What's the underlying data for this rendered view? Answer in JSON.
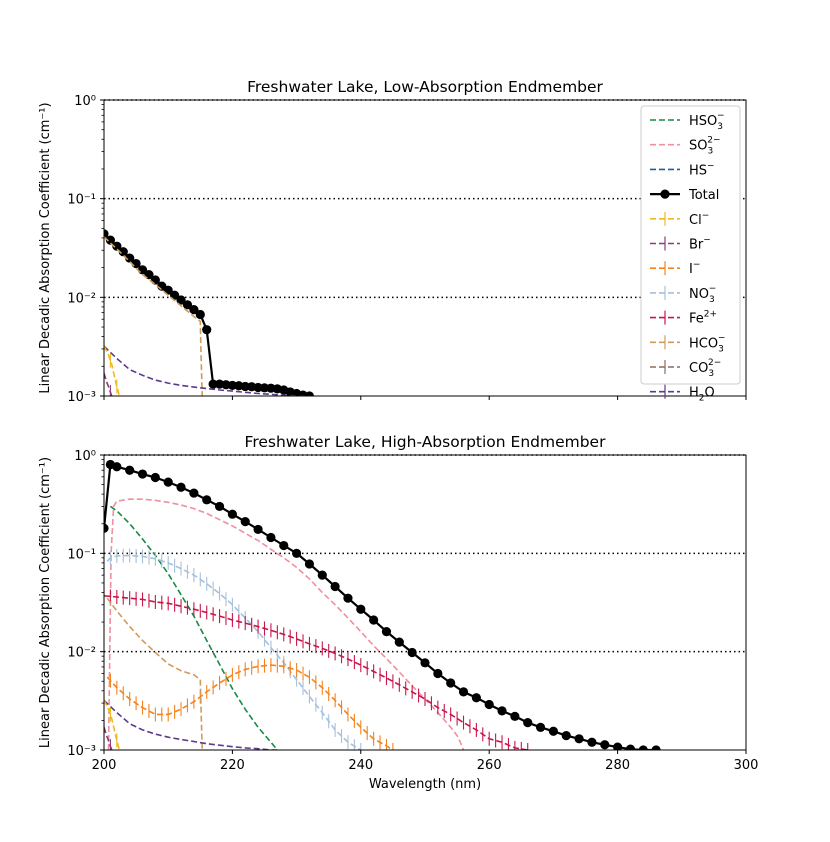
{
  "chart_data": [
    {
      "type": "line",
      "title": "Freshwater Lake, Low-Absorption Endmember",
      "xlabel": "",
      "ylabel": "Linear Decadic Absorption Coefficient (cm⁻¹)",
      "xlim": [
        200,
        300
      ],
      "ylim": [
        0.001,
        1
      ],
      "yscale": "log",
      "yticks": [
        "10⁻³",
        "10⁻²",
        "10⁻¹",
        "10⁰"
      ],
      "grid": "dotted horizontal at 10^-2 and 10^-1",
      "legend_position": "top-right",
      "series": [
        {
          "name": "Total",
          "color": "#000000",
          "style": "solid-markers",
          "x": [
            200,
            201,
            202,
            203,
            204,
            205,
            206,
            207,
            208,
            209,
            210,
            211,
            212,
            213,
            214,
            215,
            216,
            217,
            218,
            219,
            220,
            221,
            222,
            223,
            224,
            225,
            226,
            227,
            228,
            229,
            230,
            231,
            232
          ],
          "y": [
            0.044,
            0.038,
            0.033,
            0.029,
            0.025,
            0.022,
            0.019,
            0.017,
            0.015,
            0.013,
            0.0118,
            0.0105,
            0.0094,
            0.0084,
            0.0075,
            0.0067,
            0.0047,
            0.00132,
            0.00132,
            0.0013,
            0.00128,
            0.00127,
            0.00125,
            0.00124,
            0.00122,
            0.00121,
            0.0012,
            0.00118,
            0.00115,
            0.0011,
            0.00106,
            0.00102,
            0.001
          ]
        },
        {
          "name": "HCO₃⁻",
          "color": "#d09c5c",
          "style": "dashed",
          "x": [
            200,
            202,
            204,
            206,
            208,
            210,
            212,
            214,
            215,
            215.1,
            215.3
          ],
          "y": [
            0.041,
            0.031,
            0.023,
            0.017,
            0.0135,
            0.0105,
            0.0082,
            0.0064,
            0.0057,
            0.003,
            0.001
          ]
        },
        {
          "name": "H₂O",
          "color": "#5b3b8c",
          "style": "dashed",
          "x": [
            200,
            202,
            204,
            206,
            208,
            210,
            212,
            214,
            216,
            218,
            220,
            222,
            224,
            226,
            228,
            230,
            232
          ],
          "y": [
            0.0032,
            0.0024,
            0.00185,
            0.00162,
            0.00145,
            0.00135,
            0.00128,
            0.00123,
            0.00119,
            0.00115,
            0.00112,
            0.00109,
            0.00106,
            0.00104,
            0.00102,
            0.001,
            0.001
          ]
        },
        {
          "name": "Cl⁻",
          "color": "#f0b820",
          "style": "dashed-cross",
          "x": [
            200,
            200.6,
            201.2,
            201.8,
            202.4
          ],
          "y": [
            0.0032,
            0.0027,
            0.0021,
            0.0014,
            0.001
          ]
        },
        {
          "name": "Br⁻",
          "color": "#8b3a7c",
          "style": "dashed-cross",
          "x": [
            200,
            200.4,
            200.8,
            201.2
          ],
          "y": [
            0.0017,
            0.0014,
            0.0012,
            0.001
          ]
        }
      ],
      "legend": [
        "HSO₃⁻",
        "SO₃²⁻",
        "HS⁻",
        "Total",
        "Cl⁻",
        "Br⁻",
        "I⁻",
        "NO₃⁻",
        "Fe²⁺",
        "HCO₃⁻",
        "CO₃²⁻",
        "H₂O"
      ]
    },
    {
      "type": "line",
      "title": "Freshwater Lake, High-Absorption Endmember",
      "xlabel": "Wavelength (nm)",
      "ylabel": "Linear Decadic Absorption Coefficient (cm⁻¹)",
      "xlim": [
        200,
        300
      ],
      "ylim": [
        0.001,
        1
      ],
      "yscale": "log",
      "xticks": [
        "200",
        "220",
        "240",
        "260",
        "280",
        "300"
      ],
      "yticks": [
        "10⁻³",
        "10⁻²",
        "10⁻¹",
        "10⁰"
      ],
      "grid": "dotted horizontal at 10^-2 and 10^-1",
      "series": [
        {
          "name": "Total",
          "color": "#000000",
          "style": "solid-markers",
          "x": [
            200,
            201,
            202,
            204,
            206,
            208,
            210,
            212,
            214,
            216,
            218,
            220,
            222,
            224,
            226,
            228,
            230,
            232,
            234,
            236,
            238,
            240,
            242,
            244,
            246,
            248,
            250,
            252,
            254,
            256,
            258,
            260,
            262,
            264,
            266,
            268,
            270,
            272,
            274,
            276,
            278,
            280,
            282,
            284,
            286
          ],
          "y": [
            0.18,
            0.8,
            0.76,
            0.7,
            0.64,
            0.59,
            0.53,
            0.47,
            0.41,
            0.35,
            0.3,
            0.25,
            0.21,
            0.175,
            0.145,
            0.12,
            0.1,
            0.078,
            0.06,
            0.046,
            0.035,
            0.027,
            0.021,
            0.016,
            0.0125,
            0.0098,
            0.0077,
            0.006,
            0.0048,
            0.0039,
            0.0034,
            0.0029,
            0.0025,
            0.0022,
            0.0019,
            0.0017,
            0.00155,
            0.0014,
            0.0013,
            0.0012,
            0.00113,
            0.00107,
            0.00102,
            0.001,
            0.001
          ]
        },
        {
          "name": "SO₃²⁻",
          "color": "#ef8fa0",
          "style": "dashed",
          "x": [
            200.7,
            200.9,
            201.1,
            201.5,
            202,
            204,
            206,
            208,
            210,
            212,
            214,
            216,
            218,
            220,
            222,
            224,
            226,
            228,
            230,
            232,
            234,
            236,
            238,
            240,
            242,
            244,
            246,
            248,
            250,
            252,
            254,
            255,
            255.5,
            256
          ],
          "y": [
            0.001,
            0.01,
            0.1,
            0.3,
            0.34,
            0.355,
            0.355,
            0.345,
            0.33,
            0.31,
            0.285,
            0.255,
            0.22,
            0.19,
            0.16,
            0.135,
            0.11,
            0.09,
            0.072,
            0.055,
            0.04,
            0.03,
            0.022,
            0.016,
            0.0115,
            0.0085,
            0.0062,
            0.0045,
            0.0033,
            0.0024,
            0.0017,
            0.0014,
            0.0012,
            0.001
          ]
        },
        {
          "name": "HSO₃⁻",
          "color": "#178a46",
          "style": "dashed",
          "x": [
            201,
            202,
            204,
            206,
            208,
            210,
            212,
            214,
            216,
            218,
            220,
            222,
            224,
            226,
            227
          ],
          "y": [
            0.3,
            0.27,
            0.2,
            0.14,
            0.095,
            0.062,
            0.038,
            0.023,
            0.013,
            0.0074,
            0.0042,
            0.0026,
            0.0017,
            0.0012,
            0.001
          ]
        },
        {
          "name": "NO₃⁻",
          "color": "#a7c0da",
          "style": "dashed-cross",
          "x": [
            200.5,
            201,
            202,
            204,
            206,
            208,
            210,
            212,
            214,
            216,
            218,
            220,
            222,
            224,
            226,
            228,
            230,
            232,
            234,
            236,
            238,
            240
          ],
          "y": [
            0.083,
            0.09,
            0.094,
            0.095,
            0.093,
            0.088,
            0.08,
            0.07,
            0.06,
            0.049,
            0.039,
            0.03,
            0.022,
            0.016,
            0.011,
            0.0077,
            0.0052,
            0.0035,
            0.0024,
            0.0016,
            0.0012,
            0.001
          ]
        },
        {
          "name": "Fe²⁺",
          "color": "#c8154a",
          "style": "dashed-cross",
          "x": [
            200,
            202,
            204,
            206,
            208,
            210,
            212,
            214,
            216,
            218,
            220,
            222,
            224,
            226,
            228,
            230,
            232,
            234,
            236,
            238,
            240,
            242,
            244,
            246,
            248,
            250,
            252,
            254,
            256,
            258,
            260,
            262,
            264,
            266
          ],
          "y": [
            0.037,
            0.036,
            0.035,
            0.034,
            0.032,
            0.031,
            0.029,
            0.027,
            0.025,
            0.023,
            0.021,
            0.0195,
            0.018,
            0.0165,
            0.015,
            0.0135,
            0.012,
            0.0108,
            0.0096,
            0.0084,
            0.0073,
            0.0063,
            0.0054,
            0.0046,
            0.0039,
            0.0033,
            0.0027,
            0.0023,
            0.0019,
            0.0016,
            0.0013,
            0.0012,
            0.00105,
            0.001
          ]
        },
        {
          "name": "I⁻",
          "color": "#f4831f",
          "style": "dashed-cross",
          "x": [
            200.5,
            202,
            204,
            206,
            208,
            210,
            212,
            214,
            216,
            218,
            220,
            222,
            224,
            226,
            228,
            230,
            232,
            234,
            236,
            238,
            240,
            242,
            244,
            245
          ],
          "y": [
            0.0055,
            0.0043,
            0.0033,
            0.0027,
            0.0023,
            0.0023,
            0.0026,
            0.0031,
            0.0039,
            0.0048,
            0.0058,
            0.0066,
            0.0071,
            0.0073,
            0.0071,
            0.0065,
            0.0055,
            0.0043,
            0.0032,
            0.0023,
            0.0017,
            0.0013,
            0.0011,
            0.001
          ]
        },
        {
          "name": "HCO₃⁻",
          "color": "#d09c5c",
          "style": "dashed",
          "x": [
            200.5,
            202,
            204,
            206,
            208,
            210,
            212,
            214,
            215,
            215.1,
            215.3
          ],
          "y": [
            0.035,
            0.026,
            0.018,
            0.013,
            0.0098,
            0.0075,
            0.0064,
            0.0058,
            0.0052,
            0.003,
            0.001
          ]
        },
        {
          "name": "H₂O",
          "color": "#5b3b8c",
          "style": "dashed",
          "x": [
            200,
            202,
            204,
            206,
            208,
            210,
            212,
            214,
            216,
            218,
            220,
            222,
            224,
            226,
            227
          ],
          "y": [
            0.0032,
            0.0024,
            0.00185,
            0.0016,
            0.00145,
            0.00135,
            0.00128,
            0.00122,
            0.00116,
            0.00112,
            0.00108,
            0.00105,
            0.00103,
            0.001,
            0.001
          ]
        },
        {
          "name": "Cl⁻",
          "color": "#f0b820",
          "style": "dashed-cross",
          "x": [
            200,
            200.6,
            201.2,
            201.8,
            202.4
          ],
          "y": [
            0.0032,
            0.0027,
            0.0021,
            0.0014,
            0.001
          ]
        },
        {
          "name": "Br⁻",
          "color": "#8b3a7c",
          "style": "dashed-cross",
          "x": [
            200,
            200.4,
            200.8,
            201.2
          ],
          "y": [
            0.0017,
            0.0014,
            0.0012,
            0.001
          ]
        }
      ]
    }
  ],
  "legend_items": [
    {
      "key": "HSO3",
      "base": "HSO",
      "sub": "3",
      "sup": "−",
      "color": "#178a46",
      "style": "dashed"
    },
    {
      "key": "SO3",
      "base": "SO",
      "sub": "3",
      "sup": "2−",
      "color": "#ef8fa0",
      "style": "dashed"
    },
    {
      "key": "HS",
      "base": "HS",
      "sub": "",
      "sup": "−",
      "color": "#1f5f9c",
      "style": "dashed"
    },
    {
      "key": "Total",
      "base": "Total",
      "sub": "",
      "sup": "",
      "color": "#000000",
      "style": "solid-markers"
    },
    {
      "key": "Cl",
      "base": "Cl",
      "sub": "",
      "sup": "−",
      "color": "#f0b820",
      "style": "dashed-cross"
    },
    {
      "key": "Br",
      "base": "Br",
      "sub": "",
      "sup": "−",
      "color": "#8b3a7c",
      "style": "dashed-cross"
    },
    {
      "key": "I",
      "base": "I",
      "sub": "",
      "sup": "−",
      "color": "#f4831f",
      "style": "dashed-cross"
    },
    {
      "key": "NO3",
      "base": "NO",
      "sub": "3",
      "sup": "−",
      "color": "#a7c0da",
      "style": "dashed-cross"
    },
    {
      "key": "Fe",
      "base": "Fe",
      "sub": "",
      "sup": "2+",
      "color": "#c8154a",
      "style": "dashed-cross"
    },
    {
      "key": "HCO3",
      "base": "HCO",
      "sub": "3",
      "sup": "−",
      "color": "#d09c5c",
      "style": "dashed-cross"
    },
    {
      "key": "CO3",
      "base": "CO",
      "sub": "3",
      "sup": "2−",
      "color": "#8a6d5c",
      "style": "dashed-cross"
    },
    {
      "key": "H2O",
      "base": "H",
      "sub": "2",
      "sup": "",
      "tail": "O",
      "color": "#5b3b8c",
      "style": "dashed-cross"
    }
  ]
}
